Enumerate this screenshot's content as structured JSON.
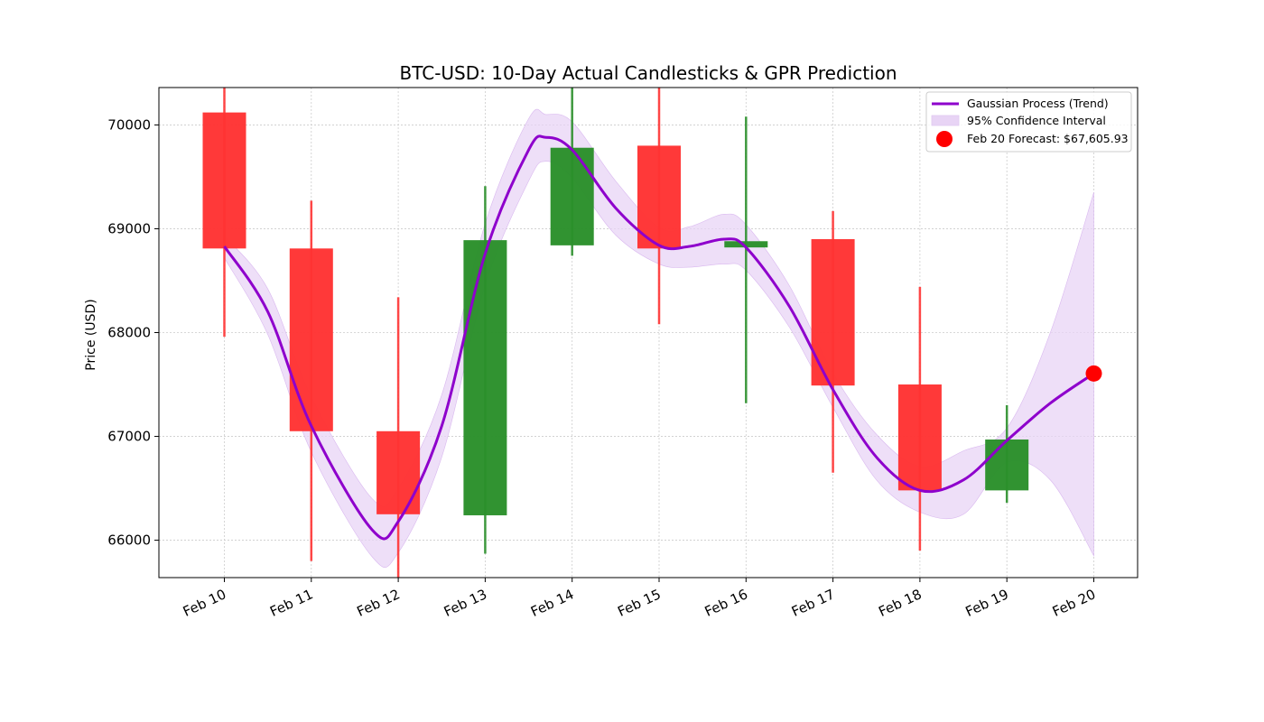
{
  "chart_data": {
    "type": "candlestick",
    "title": "BTC-USD: 10-Day Actual Candlesticks & GPR Prediction",
    "xlabel": "",
    "ylabel": "Price (USD)",
    "ylim": [
      65640,
      70360
    ],
    "yticks": [
      66000,
      67000,
      68000,
      69000,
      70000
    ],
    "categories": [
      "Feb 10",
      "Feb 11",
      "Feb 12",
      "Feb 13",
      "Feb 14",
      "Feb 15",
      "Feb 16",
      "Feb 17",
      "Feb 18",
      "Feb 19",
      "Feb 20"
    ],
    "candles": [
      {
        "date": "Feb 10",
        "open": 70120,
        "close": 68810,
        "high": 70360,
        "low": 67960,
        "direction": "down"
      },
      {
        "date": "Feb 11",
        "open": 68810,
        "close": 67050,
        "high": 69270,
        "low": 65800,
        "direction": "down"
      },
      {
        "date": "Feb 12",
        "open": 67050,
        "close": 66250,
        "high": 68340,
        "low": 65640,
        "direction": "down"
      },
      {
        "date": "Feb 13",
        "open": 66240,
        "close": 68890,
        "high": 69410,
        "low": 65870,
        "direction": "up"
      },
      {
        "date": "Feb 14",
        "open": 68840,
        "close": 69780,
        "high": 70360,
        "low": 68740,
        "direction": "up"
      },
      {
        "date": "Feb 15",
        "open": 69800,
        "close": 68810,
        "high": 70360,
        "low": 68080,
        "direction": "down"
      },
      {
        "date": "Feb 16",
        "open": 68820,
        "close": 68880,
        "high": 70080,
        "low": 67320,
        "direction": "up"
      },
      {
        "date": "Feb 17",
        "open": 68900,
        "close": 67490,
        "high": 69170,
        "low": 66650,
        "direction": "down"
      },
      {
        "date": "Feb 18",
        "open": 67500,
        "close": 66480,
        "high": 68440,
        "low": 65900,
        "direction": "down"
      },
      {
        "date": "Feb 19",
        "open": 66480,
        "close": 66970,
        "high": 67300,
        "low": 66360,
        "direction": "up"
      }
    ],
    "gp_trend": {
      "name": "Gaussian Process (Trend)",
      "x": [
        0,
        0.5,
        1,
        1.7,
        2,
        2.5,
        3,
        3.5,
        3.7,
        4,
        4.5,
        5,
        5.35,
        5.75,
        6,
        6.5,
        7,
        7.5,
        8,
        8.5,
        9,
        9.5,
        10
      ],
      "y": [
        68830,
        68200,
        67100,
        66100,
        66180,
        67100,
        68760,
        69760,
        69880,
        69760,
        69200,
        68840,
        68830,
        68900,
        68820,
        68250,
        67450,
        66800,
        66480,
        66580,
        66960,
        67320,
        67606
      ]
    },
    "confidence_interval": {
      "name": "95% Confidence Interval",
      "x": [
        0,
        0.5,
        1,
        1.7,
        2,
        2.5,
        3,
        3.5,
        3.7,
        4,
        4.5,
        5,
        5.35,
        5.75,
        6,
        6.5,
        7,
        7.5,
        8,
        8.5,
        9,
        9.5,
        10
      ],
      "upper": [
        68930,
        68420,
        67380,
        66400,
        66500,
        67400,
        69050,
        70060,
        70100,
        70030,
        69460,
        69010,
        69020,
        69140,
        69040,
        68450,
        67610,
        67020,
        66710,
        66860,
        67080,
        68000,
        69350
      ],
      "lower": [
        68720,
        67980,
        66850,
        65840,
        65880,
        66800,
        68460,
        69460,
        69650,
        69490,
        68940,
        68660,
        68630,
        68660,
        68600,
        68050,
        67280,
        66580,
        66270,
        66250,
        66750,
        66580,
        65850
      ]
    },
    "forecast": {
      "label": "Feb 20 Forecast: $67,605.93",
      "x": 10,
      "value": 67605.93
    },
    "legend_position": "top-right",
    "colors": {
      "up": "#2a8f2a",
      "down": "#ff3333",
      "trend": "#8e00cc",
      "band": "#e8d4f5",
      "forecast": "#ff0000"
    }
  }
}
